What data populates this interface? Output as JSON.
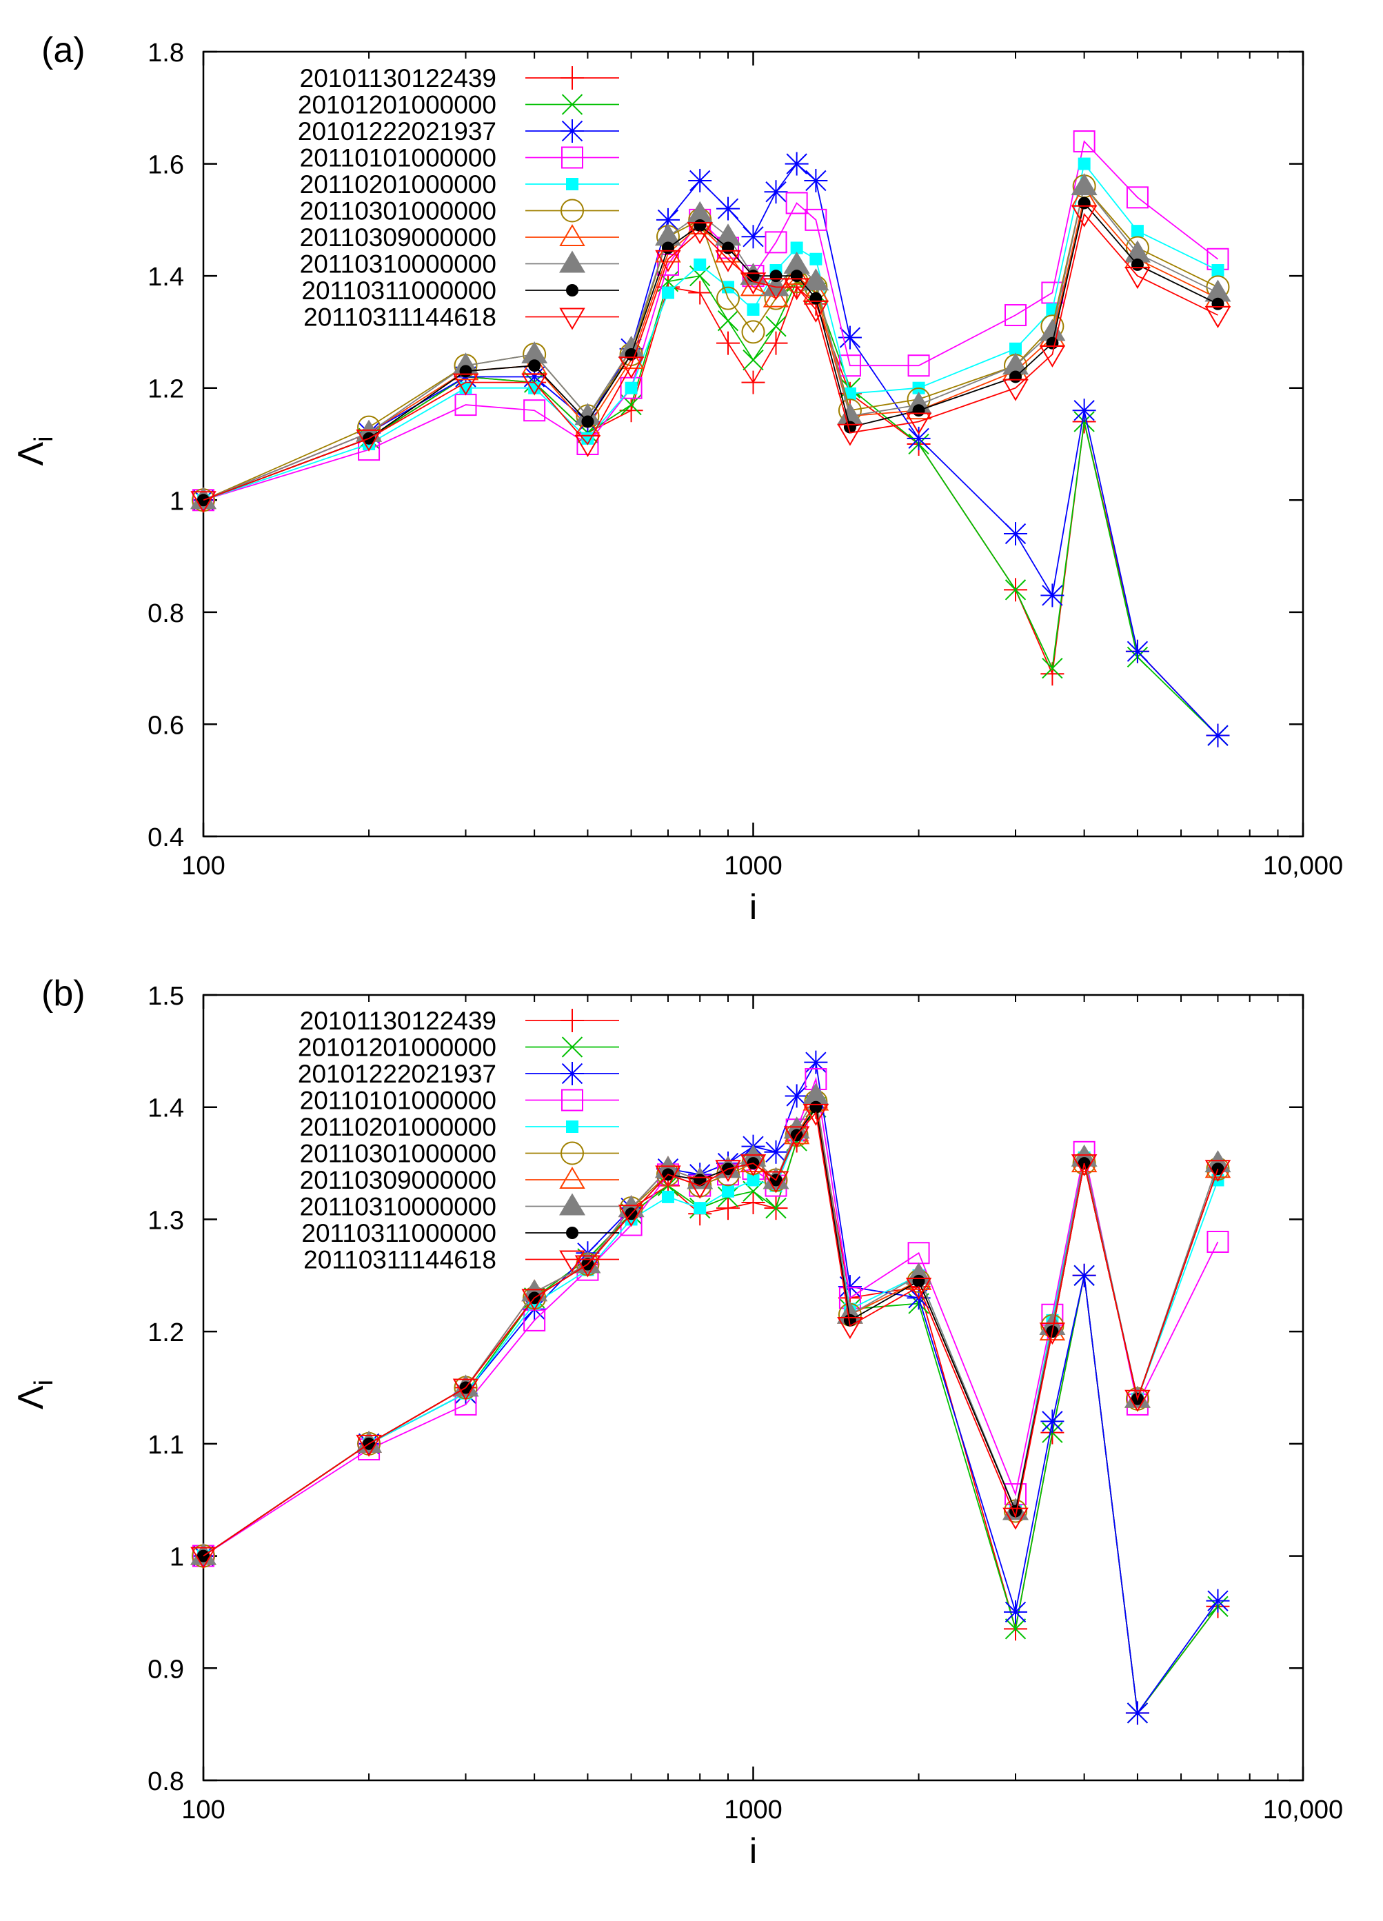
{
  "figure": {
    "title": ""
  },
  "colors": {
    "series": [
      "#ff0000",
      "#00c000",
      "#0000ff",
      "#ff00ff",
      "#00ffff",
      "#a08000",
      "#ff4000",
      "#808080",
      "#000000",
      "#ff0000"
    ],
    "markers": [
      "plus",
      "cross",
      "star",
      "square-open",
      "square-filled",
      "circle-open",
      "triangle-up-open",
      "triangle-up-filled",
      "circle-filled",
      "triangle-down-open"
    ]
  },
  "chart_data": [
    {
      "type": "line",
      "panel_label": "(a)",
      "xscale": "log",
      "xlim": [
        100,
        10000
      ],
      "ylim": [
        0.4,
        1.8
      ],
      "xticks": [
        100,
        1000,
        10000
      ],
      "xtick_labels": [
        "100",
        "1000",
        "10,000"
      ],
      "yticks": [
        0.4,
        0.6,
        0.8,
        1,
        1.2,
        1.4,
        1.6,
        1.8
      ],
      "ytick_labels": [
        "0.4",
        "0.6",
        "0.8",
        "1",
        "1.2",
        "1.4",
        "1.6",
        "1.8"
      ],
      "xlabel": "i",
      "ylabel": "Λ",
      "ylabel_sub": "i",
      "legend_position": "top-left",
      "series": [
        {
          "name": "20101130122439",
          "x": [
            100,
            200,
            300,
            400,
            500,
            600,
            700,
            800,
            900,
            1000,
            1100,
            1200,
            1300,
            1500,
            2000,
            3000,
            3500,
            4000,
            5000,
            7000
          ],
          "y": [
            1.0,
            1.11,
            1.22,
            1.21,
            1.12,
            1.16,
            1.38,
            1.37,
            1.28,
            1.21,
            1.28,
            1.38,
            1.35,
            1.19,
            1.1,
            0.84,
            0.69,
            1.14,
            0.73,
            0.58
          ]
        },
        {
          "name": "20101201000000",
          "x": [
            100,
            200,
            300,
            400,
            500,
            600,
            700,
            800,
            900,
            1000,
            1100,
            1200,
            1300,
            1500,
            2000,
            3000,
            3500,
            4000,
            5000,
            7000
          ],
          "y": [
            1.0,
            1.11,
            1.22,
            1.21,
            1.12,
            1.17,
            1.39,
            1.4,
            1.32,
            1.25,
            1.31,
            1.39,
            1.37,
            1.2,
            1.1,
            0.84,
            0.7,
            1.14,
            0.72,
            0.58
          ]
        },
        {
          "name": "20101222021937",
          "x": [
            100,
            200,
            300,
            400,
            500,
            600,
            700,
            800,
            900,
            1000,
            1100,
            1200,
            1300,
            1500,
            2000,
            3000,
            3500,
            4000,
            5000,
            7000
          ],
          "y": [
            1.0,
            1.12,
            1.22,
            1.22,
            1.14,
            1.27,
            1.5,
            1.57,
            1.52,
            1.47,
            1.55,
            1.6,
            1.57,
            1.29,
            1.11,
            0.94,
            0.83,
            1.16,
            0.73,
            0.58
          ]
        },
        {
          "name": "20110101000000",
          "x": [
            100,
            200,
            300,
            400,
            500,
            600,
            700,
            800,
            900,
            1000,
            1100,
            1200,
            1300,
            1500,
            2000,
            3000,
            3500,
            4000,
            5000,
            7000
          ],
          "y": [
            1.0,
            1.09,
            1.17,
            1.16,
            1.1,
            1.2,
            1.42,
            1.5,
            1.45,
            1.4,
            1.46,
            1.53,
            1.5,
            1.24,
            1.24,
            1.33,
            1.37,
            1.64,
            1.54,
            1.43
          ]
        },
        {
          "name": "20110201000000",
          "x": [
            100,
            200,
            300,
            400,
            500,
            600,
            700,
            800,
            900,
            1000,
            1100,
            1200,
            1300,
            1500,
            2000,
            3000,
            3500,
            4000,
            5000,
            7000
          ],
          "y": [
            1.0,
            1.1,
            1.2,
            1.2,
            1.11,
            1.2,
            1.37,
            1.42,
            1.38,
            1.34,
            1.41,
            1.45,
            1.43,
            1.19,
            1.2,
            1.27,
            1.34,
            1.6,
            1.48,
            1.41
          ]
        },
        {
          "name": "20110301000000",
          "x": [
            100,
            200,
            300,
            400,
            500,
            600,
            700,
            800,
            900,
            1000,
            1100,
            1200,
            1300,
            1500,
            2000,
            3000,
            3500,
            4000,
            5000,
            7000
          ],
          "y": [
            1.0,
            1.13,
            1.24,
            1.26,
            1.15,
            1.26,
            1.47,
            1.5,
            1.36,
            1.3,
            1.36,
            1.39,
            1.38,
            1.16,
            1.18,
            1.24,
            1.31,
            1.56,
            1.45,
            1.38
          ]
        },
        {
          "name": "20110309000000",
          "x": [
            100,
            200,
            300,
            400,
            500,
            600,
            700,
            800,
            900,
            1000,
            1100,
            1200,
            1300,
            1500,
            2000,
            3000,
            3500,
            4000,
            5000,
            7000
          ],
          "y": [
            1.0,
            1.12,
            1.23,
            1.24,
            1.13,
            1.25,
            1.44,
            1.49,
            1.44,
            1.38,
            1.36,
            1.4,
            1.37,
            1.15,
            1.16,
            1.23,
            1.29,
            1.54,
            1.43,
            1.36
          ]
        },
        {
          "name": "20110310000000",
          "x": [
            100,
            200,
            300,
            400,
            500,
            600,
            700,
            800,
            900,
            1000,
            1100,
            1200,
            1300,
            1500,
            2000,
            3000,
            3500,
            4000,
            5000,
            7000
          ],
          "y": [
            1.0,
            1.12,
            1.24,
            1.26,
            1.15,
            1.27,
            1.47,
            1.51,
            1.47,
            1.4,
            1.38,
            1.42,
            1.39,
            1.15,
            1.17,
            1.24,
            1.3,
            1.56,
            1.44,
            1.37
          ]
        },
        {
          "name": "20110311000000",
          "x": [
            100,
            200,
            300,
            400,
            500,
            600,
            700,
            800,
            900,
            1000,
            1100,
            1200,
            1300,
            1500,
            2000,
            3000,
            3500,
            4000,
            5000,
            7000
          ],
          "y": [
            1.0,
            1.11,
            1.23,
            1.24,
            1.14,
            1.26,
            1.45,
            1.49,
            1.45,
            1.4,
            1.4,
            1.4,
            1.36,
            1.13,
            1.16,
            1.22,
            1.28,
            1.53,
            1.42,
            1.35
          ]
        },
        {
          "name": "20110311144618",
          "x": [
            100,
            200,
            300,
            400,
            500,
            600,
            700,
            800,
            900,
            1000,
            1100,
            1200,
            1300,
            1500,
            2000,
            3000,
            3500,
            4000,
            5000,
            7000
          ],
          "y": [
            1.0,
            1.11,
            1.21,
            1.21,
            1.1,
            1.24,
            1.43,
            1.48,
            1.43,
            1.39,
            1.38,
            1.38,
            1.34,
            1.12,
            1.14,
            1.2,
            1.26,
            1.51,
            1.4,
            1.33
          ]
        }
      ]
    },
    {
      "type": "line",
      "panel_label": "(b)",
      "xscale": "log",
      "xlim": [
        100,
        10000
      ],
      "ylim": [
        0.8,
        1.5
      ],
      "xticks": [
        100,
        1000,
        10000
      ],
      "xtick_labels": [
        "100",
        "1000",
        "10,000"
      ],
      "yticks": [
        0.8,
        0.9,
        1,
        1.1,
        1.2,
        1.3,
        1.4,
        1.5
      ],
      "ytick_labels": [
        "0.8",
        "0.9",
        "1",
        "1.1",
        "1.2",
        "1.3",
        "1.4",
        "1.5"
      ],
      "xlabel": "i",
      "ylabel": "Λ",
      "ylabel_sub": "i",
      "legend_position": "top-left",
      "series": [
        {
          "name": "20101130122439",
          "x": [
            100,
            200,
            300,
            400,
            500,
            600,
            700,
            800,
            900,
            1000,
            1100,
            1200,
            1300,
            1500,
            2000,
            3000,
            3500,
            4000,
            5000,
            7000
          ],
          "y": [
            1.0,
            1.1,
            1.15,
            1.23,
            1.26,
            1.31,
            1.33,
            1.305,
            1.31,
            1.315,
            1.31,
            1.37,
            1.4,
            1.23,
            1.24,
            0.935,
            1.11,
            1.25,
            0.86,
            0.955
          ]
        },
        {
          "name": "20101201000000",
          "x": [
            100,
            200,
            300,
            400,
            500,
            600,
            700,
            800,
            900,
            1000,
            1100,
            1200,
            1300,
            1500,
            2000,
            3000,
            3500,
            4000,
            5000,
            7000
          ],
          "y": [
            1.0,
            1.1,
            1.145,
            1.23,
            1.265,
            1.305,
            1.33,
            1.31,
            1.32,
            1.325,
            1.31,
            1.37,
            1.4,
            1.22,
            1.225,
            0.935,
            1.11,
            1.25,
            0.86,
            0.955
          ]
        },
        {
          "name": "20101222021937",
          "x": [
            100,
            200,
            300,
            400,
            500,
            600,
            700,
            800,
            900,
            1000,
            1100,
            1200,
            1300,
            1500,
            2000,
            3000,
            3500,
            4000,
            5000,
            7000
          ],
          "y": [
            1.0,
            1.1,
            1.145,
            1.22,
            1.27,
            1.31,
            1.345,
            1.34,
            1.35,
            1.365,
            1.36,
            1.41,
            1.44,
            1.24,
            1.23,
            0.95,
            1.12,
            1.25,
            0.86,
            0.96
          ]
        },
        {
          "name": "20110101000000",
          "x": [
            100,
            200,
            300,
            400,
            500,
            600,
            700,
            800,
            900,
            1000,
            1100,
            1200,
            1300,
            1500,
            2000,
            3000,
            3500,
            4000,
            5000,
            7000
          ],
          "y": [
            1.0,
            1.095,
            1.135,
            1.21,
            1.255,
            1.295,
            1.34,
            1.33,
            1.34,
            1.345,
            1.33,
            1.38,
            1.425,
            1.23,
            1.27,
            1.055,
            1.215,
            1.36,
            1.135,
            1.28
          ]
        },
        {
          "name": "20110201000000",
          "x": [
            100,
            200,
            300,
            400,
            500,
            600,
            700,
            800,
            900,
            1000,
            1100,
            1200,
            1300,
            1500,
            2000,
            3000,
            3500,
            4000,
            5000,
            7000
          ],
          "y": [
            1.0,
            1.1,
            1.145,
            1.225,
            1.255,
            1.3,
            1.32,
            1.31,
            1.325,
            1.335,
            1.33,
            1.375,
            1.405,
            1.22,
            1.25,
            1.04,
            1.21,
            1.355,
            1.14,
            1.335
          ]
        },
        {
          "name": "20110301000000",
          "x": [
            100,
            200,
            300,
            400,
            500,
            600,
            700,
            800,
            900,
            1000,
            1100,
            1200,
            1300,
            1500,
            2000,
            3000,
            3500,
            4000,
            5000,
            7000
          ],
          "y": [
            1.0,
            1.1,
            1.15,
            1.23,
            1.26,
            1.31,
            1.34,
            1.33,
            1.34,
            1.35,
            1.335,
            1.375,
            1.405,
            1.215,
            1.245,
            1.04,
            1.205,
            1.35,
            1.14,
            1.345
          ]
        },
        {
          "name": "20110309000000",
          "x": [
            100,
            200,
            300,
            400,
            500,
            600,
            700,
            800,
            900,
            1000,
            1100,
            1200,
            1300,
            1500,
            2000,
            3000,
            3500,
            4000,
            5000,
            7000
          ],
          "y": [
            1.0,
            1.1,
            1.15,
            1.235,
            1.26,
            1.31,
            1.345,
            1.335,
            1.345,
            1.35,
            1.335,
            1.375,
            1.405,
            1.215,
            1.245,
            1.04,
            1.2,
            1.35,
            1.14,
            1.345
          ]
        },
        {
          "name": "20110310000000",
          "x": [
            100,
            200,
            300,
            400,
            500,
            600,
            700,
            800,
            900,
            1000,
            1100,
            1200,
            1300,
            1500,
            2000,
            3000,
            3500,
            4000,
            5000,
            7000
          ],
          "y": [
            1.0,
            1.1,
            1.15,
            1.235,
            1.26,
            1.31,
            1.345,
            1.335,
            1.345,
            1.355,
            1.335,
            1.38,
            1.41,
            1.215,
            1.25,
            1.04,
            1.205,
            1.355,
            1.14,
            1.35
          ]
        },
        {
          "name": "20110311000000",
          "x": [
            100,
            200,
            300,
            400,
            500,
            600,
            700,
            800,
            900,
            1000,
            1100,
            1200,
            1300,
            1500,
            2000,
            3000,
            3500,
            4000,
            5000,
            7000
          ],
          "y": [
            1.0,
            1.1,
            1.15,
            1.23,
            1.26,
            1.305,
            1.34,
            1.335,
            1.345,
            1.35,
            1.335,
            1.375,
            1.4,
            1.21,
            1.245,
            1.04,
            1.2,
            1.35,
            1.14,
            1.345
          ]
        },
        {
          "name": "20110311144618",
          "x": [
            100,
            200,
            300,
            400,
            500,
            600,
            700,
            800,
            900,
            1000,
            1100,
            1200,
            1300,
            1500,
            2000,
            3000,
            3500,
            4000,
            5000,
            7000
          ],
          "y": [
            1.0,
            1.1,
            1.15,
            1.23,
            1.26,
            1.305,
            1.34,
            1.33,
            1.345,
            1.35,
            1.335,
            1.375,
            1.395,
            1.205,
            1.24,
            1.035,
            1.2,
            1.35,
            1.14,
            1.345
          ]
        }
      ]
    }
  ]
}
